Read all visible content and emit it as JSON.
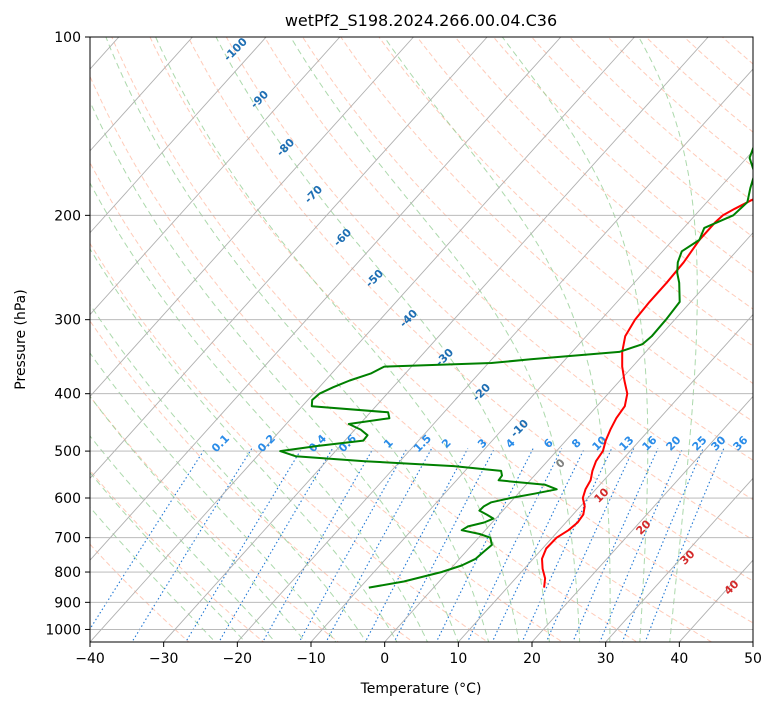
{
  "chart_data": {
    "type": "line",
    "title": "wetPf2_S198.2024.266.00.04.C36",
    "xlabel": "Temperature (°C)",
    "ylabel": "Pressure (hPa)",
    "xlim": [
      -40,
      50
    ],
    "ylim": [
      1050,
      100
    ],
    "y_scale": "log",
    "x_ticks": [
      -40,
      -30,
      -20,
      -10,
      0,
      10,
      20,
      30,
      40,
      50
    ],
    "y_ticks": [
      100,
      200,
      300,
      400,
      500,
      600,
      700,
      800,
      900,
      1000
    ],
    "grid": true,
    "series": [
      {
        "role": "temperature",
        "color": "#ff0000",
        "p": [
          850,
          820,
          790,
          760,
          730,
          700,
          680,
          660,
          640,
          620,
          600,
          580,
          560,
          540,
          520,
          500,
          480,
          460,
          440,
          420,
          400,
          380,
          360,
          340,
          320,
          300,
          280,
          260,
          240,
          220,
          205,
          200,
          195,
          185,
          175,
          160,
          145,
          130,
          115,
          100
        ],
        "t": [
          15,
          14,
          12.5,
          11.2,
          10.5,
          10.6,
          11.3,
          11.6,
          11.4,
          10.6,
          9.3,
          8.6,
          8.2,
          7.3,
          6.6,
          6.3,
          5.4,
          4.7,
          4.1,
          3.8,
          2.6,
          0.6,
          -1.4,
          -3.2,
          -4.7,
          -5.4,
          -5.6,
          -5.6,
          -5.8,
          -6.4,
          -6.4,
          -6.2,
          -5.4,
          -3.5,
          -0.9,
          4.6,
          10.5,
          13.9,
          16.6,
          20.6
        ]
      },
      {
        "role": "dewpoint",
        "color": "#008000",
        "p": [
          850,
          830,
          800,
          780,
          760,
          740,
          720,
          700,
          690,
          680,
          670,
          660,
          650,
          640,
          630,
          620,
          610,
          600,
          590,
          580,
          570,
          560,
          550,
          540,
          530,
          520,
          510,
          500,
          490,
          480,
          470,
          460,
          450,
          440,
          430,
          420,
          410,
          400,
          390,
          380,
          370,
          360,
          355,
          350,
          340,
          330,
          320,
          300,
          280,
          260,
          250,
          240,
          230,
          220,
          210,
          200,
          190,
          180,
          170,
          160,
          150,
          140,
          130,
          120,
          110,
          100
        ],
        "t": [
          -8.8,
          -4.8,
          -0.8,
          1.1,
          2.2,
          2.4,
          2.7,
          1.6,
          -0.3,
          -3.2,
          -2.8,
          -1.1,
          -0.3,
          -1.7,
          -3.2,
          -3.1,
          -2.6,
          -0.5,
          2.2,
          4.7,
          2.6,
          -4.3,
          -4.4,
          -5.1,
          -12.1,
          -24.8,
          -34.8,
          -37.5,
          -33,
          -27.5,
          -27.6,
          -29.2,
          -31.5,
          -26.7,
          -27.6,
          -38.7,
          -39.4,
          -39.2,
          -38.1,
          -36.7,
          -34.7,
          -33.7,
          -19.6,
          -14.7,
          -3.6,
          -1.4,
          -1.1,
          -1.2,
          -1.5,
          -3.9,
          -5.4,
          -6.6,
          -7.4,
          -6.4,
          -7.2,
          -4.8,
          -4.5,
          -5.8,
          -7,
          -9.6,
          -10.8,
          -8.4,
          -6.5,
          -4,
          -1.6,
          1
        ]
      }
    ],
    "mixing_ratio_labels": [
      "0.1",
      "0.2",
      "0.4",
      "0.6",
      "1",
      "1.5",
      "2",
      "3",
      "4",
      "6",
      "8",
      "10",
      "13",
      "16",
      "20",
      "25",
      "30",
      "36"
    ],
    "mixing_ratio_values": [
      0.1,
      0.2,
      0.4,
      0.6,
      1,
      1.5,
      2,
      3,
      4,
      6,
      8,
      10,
      13,
      16,
      20,
      25,
      30,
      36
    ],
    "moist_adiabat_labels": [
      "-100",
      "-90",
      "-80",
      "-70",
      "-60",
      "-50",
      "-40",
      "-30",
      "-20",
      "-10"
    ],
    "moist_adiabat_values": [
      -100,
      -90,
      -80,
      -70,
      -60,
      -50,
      -40,
      -30,
      -20,
      -10
    ],
    "isotherm_labels": [
      "0",
      "10",
      "20",
      "30",
      "40"
    ],
    "isotherm_values": [
      0,
      10,
      20,
      30,
      40
    ],
    "colors": {
      "isotherm_grid": "#b0b0b0",
      "dry_adiabat": "#ffa080",
      "moist_adiabat": "#90cc90",
      "mixing_ratio": "#1f77d4",
      "moist_label": "#1f6fb4",
      "mixing_label": "#2a8ce8",
      "iso_label_zero": "#808080",
      "iso_label": "#d42a2a"
    }
  }
}
